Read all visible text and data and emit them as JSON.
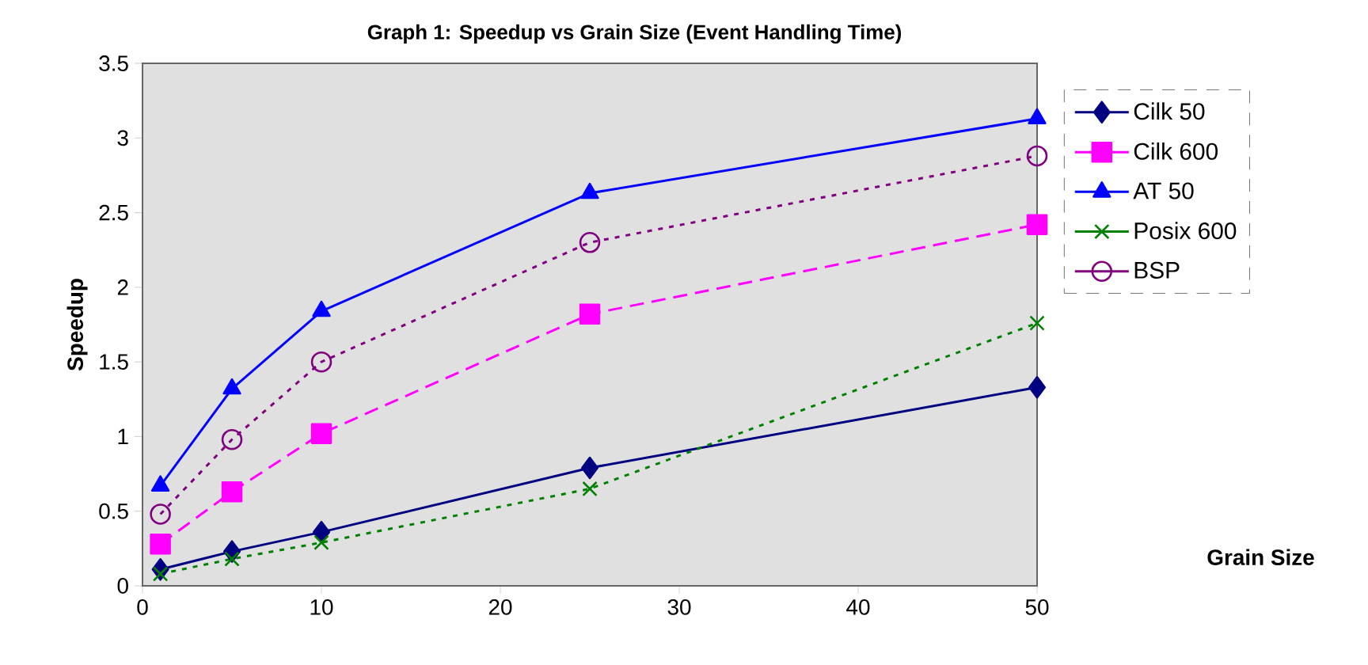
{
  "chart_data": {
    "type": "line",
    "title": "Graph 1: Speedup vs Grain Size (Event Handling Time)",
    "annotations": [
      "Grain Size"
    ],
    "ylabel": "Speedup",
    "x": [
      1,
      5,
      10,
      25,
      50
    ],
    "series": [
      {
        "name": "Cilk 50",
        "color": "#000080",
        "marker": "diamond",
        "line_style": "solid",
        "values": [
          0.11,
          0.23,
          0.36,
          0.79,
          1.33
        ]
      },
      {
        "name": "Cilk 600",
        "color": "#ff00ff",
        "marker": "square",
        "line_style": "dashed",
        "values": [
          0.28,
          0.63,
          1.02,
          1.82,
          2.42
        ]
      },
      {
        "name": "AT 50",
        "color": "#0000ff",
        "marker": "triangle",
        "line_style": "solid",
        "values": [
          0.67,
          1.32,
          1.84,
          2.63,
          3.13
        ]
      },
      {
        "name": "Posix 600",
        "color": "#008000",
        "marker": "cross",
        "line_style": "dotted",
        "values": [
          0.08,
          0.18,
          0.29,
          0.65,
          1.76
        ]
      },
      {
        "name": "BSP",
        "color": "#800080",
        "marker": "circle",
        "line_style": "dotted",
        "values": [
          0.48,
          0.98,
          1.5,
          2.3,
          2.88
        ]
      }
    ],
    "xlim": [
      0,
      50
    ],
    "ylim": [
      0,
      3.5
    ],
    "xticks": [
      0,
      10,
      20,
      30,
      40,
      50
    ],
    "yticks": [
      0,
      0.5,
      1,
      1.5,
      2,
      2.5,
      3,
      3.5
    ],
    "grid": false,
    "legend": "right"
  }
}
